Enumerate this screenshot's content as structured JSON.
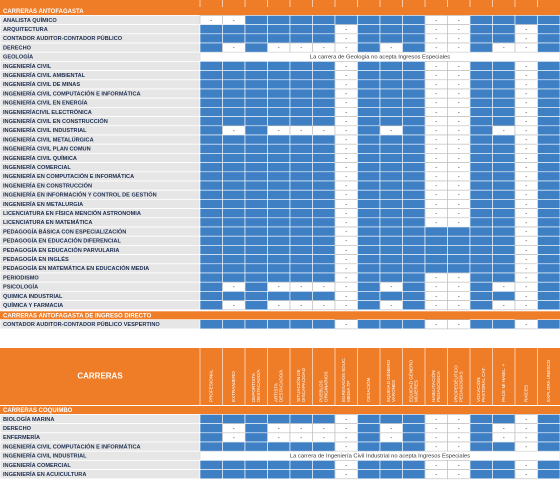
{
  "table": {
    "corner": "CARRERAS",
    "dash": "-",
    "columns": [
      [
        "PROFESIONAL"
      ],
      [
        "EXTRANJERO"
      ],
      [
        "DEPORTISTA",
        "DESTACADO/A"
      ],
      [
        "ARTISTA",
        "DESTACADO/A"
      ],
      [
        "SITUACIÓN DE",
        "DISCAPACIDAD"
      ],
      [
        "PUEBLOS",
        "ORIGINARIOS"
      ],
      [
        "EGRESADOS EDUC.",
        "MEDIA TP"
      ],
      [
        "CESACIÓN"
      ],
      [
        "EQUIDAD GÉNERO",
        "VARONES"
      ],
      [
        "EQUIDAD GÉNERO",
        "MUJERES"
      ],
      [
        "HABILITACIÓN",
        "PEDAGÓGICA"
      ],
      [
        "PROPEDÉUTICO",
        "PEDAGOGÍAS"
      ],
      [
        "VOCACIÓN",
        "PASTORAL CAT."
      ],
      [
        "PACE MI HABIL. +"
      ],
      [
        "RAÍCES"
      ],
      [
        "EXPLORA UNESCO"
      ]
    ],
    "sections": [
      {
        "title": "CARRERAS ANTOFAGASTA",
        "rows": [
          {
            "label": "ANALISTA QUÍMICO",
            "accepts": [
              false,
              false,
              true,
              true,
              true,
              true,
              true,
              true,
              true,
              true,
              false,
              false,
              true,
              true,
              true,
              true
            ]
          },
          {
            "label": "ARQUITECTURA",
            "accepts": [
              true,
              true,
              true,
              true,
              true,
              true,
              false,
              true,
              true,
              true,
              false,
              false,
              true,
              true,
              false,
              true
            ]
          },
          {
            "label": "CONTADOR AUDITOR-CONTADOR PÚBLICO",
            "accepts": [
              true,
              true,
              true,
              true,
              true,
              true,
              false,
              true,
              true,
              true,
              false,
              false,
              true,
              true,
              false,
              true
            ]
          },
          {
            "label": "DERECHO",
            "accepts": [
              true,
              false,
              true,
              false,
              false,
              false,
              false,
              true,
              false,
              true,
              false,
              false,
              true,
              false,
              false,
              true
            ]
          },
          {
            "label": "GEOLOGÍA",
            "note": "La carrera de Geología no acepta Ingresos Especiales"
          },
          {
            "label": "INGENIERÍA CIVIL",
            "accepts": [
              true,
              true,
              true,
              true,
              true,
              true,
              false,
              true,
              true,
              true,
              false,
              false,
              true,
              true,
              false,
              true
            ]
          },
          {
            "label": "INGENIERÍA CIVIL AMBIENTAL",
            "accepts": [
              true,
              true,
              true,
              true,
              true,
              true,
              false,
              true,
              true,
              true,
              false,
              false,
              true,
              true,
              false,
              true
            ]
          },
          {
            "label": "INGENIERÍA CIVIL DE MINAS",
            "accepts": [
              true,
              true,
              true,
              true,
              true,
              true,
              false,
              true,
              true,
              true,
              false,
              false,
              true,
              true,
              false,
              true
            ]
          },
          {
            "label": "INGENIERÍA CIVIL COMPUTACIÓN E INFORMÁTICA",
            "accepts": [
              true,
              true,
              true,
              true,
              true,
              true,
              false,
              true,
              true,
              true,
              false,
              false,
              true,
              true,
              false,
              true
            ]
          },
          {
            "label": "INGENIERÍA CIVIL EN ENERGÍA",
            "accepts": [
              true,
              true,
              true,
              true,
              true,
              true,
              false,
              true,
              true,
              true,
              false,
              false,
              true,
              true,
              false,
              true
            ]
          },
          {
            "label": "INGENIERÍACIVIL ELECTRÓNICA",
            "accepts": [
              true,
              true,
              true,
              true,
              true,
              true,
              false,
              true,
              true,
              true,
              false,
              false,
              true,
              true,
              false,
              true
            ]
          },
          {
            "label": "INGENIERÍA CIVIL EN CONSTRUCCIÓN",
            "accepts": [
              true,
              true,
              true,
              true,
              true,
              true,
              false,
              true,
              true,
              true,
              false,
              false,
              true,
              true,
              false,
              true
            ]
          },
          {
            "label": "INGENIERÍA CIVIL INDUSTRIAL",
            "accepts": [
              true,
              false,
              true,
              false,
              false,
              false,
              false,
              true,
              false,
              true,
              false,
              false,
              true,
              false,
              false,
              true
            ]
          },
          {
            "label": "INGENIERÍA CIVIL METALÚRGICA",
            "accepts": [
              true,
              true,
              true,
              true,
              true,
              true,
              false,
              true,
              true,
              true,
              false,
              false,
              true,
              true,
              false,
              true
            ]
          },
          {
            "label": "INGENIERÍA CIVIL PLAN COMUN",
            "accepts": [
              true,
              true,
              true,
              true,
              true,
              true,
              false,
              true,
              true,
              true,
              false,
              false,
              true,
              true,
              false,
              true
            ]
          },
          {
            "label": "INGENIERÍA CIVIL QUÍMICA",
            "accepts": [
              true,
              true,
              true,
              true,
              true,
              true,
              false,
              true,
              true,
              true,
              false,
              false,
              true,
              true,
              false,
              true
            ]
          },
          {
            "label": "INGENIERÍA COMERCIAL",
            "accepts": [
              true,
              true,
              true,
              true,
              true,
              true,
              false,
              true,
              true,
              true,
              false,
              false,
              true,
              true,
              false,
              true
            ]
          },
          {
            "label": "INGENIERÍA EN COMPUTACIÓN E INFORMÁTICA",
            "accepts": [
              true,
              true,
              true,
              true,
              true,
              true,
              false,
              true,
              true,
              true,
              false,
              false,
              true,
              true,
              false,
              true
            ]
          },
          {
            "label": "INGENIERÍA EN CONSTRUCCIÓN",
            "accepts": [
              true,
              true,
              true,
              true,
              true,
              true,
              false,
              true,
              true,
              true,
              false,
              false,
              true,
              true,
              false,
              true
            ]
          },
          {
            "label": "INGENIERÍA EN INFORMACIÓN Y CONTROL DE GESTIÓN",
            "accepts": [
              true,
              true,
              true,
              true,
              true,
              true,
              false,
              true,
              true,
              true,
              false,
              false,
              true,
              true,
              false,
              true
            ]
          },
          {
            "label": "INGENIERÍA EN METALURGIA",
            "accepts": [
              true,
              true,
              true,
              true,
              true,
              true,
              false,
              true,
              true,
              true,
              false,
              false,
              true,
              true,
              false,
              true
            ]
          },
          {
            "label": "LICENCIATURA EN FÍSICA MENCIÓN ASTRONOMIA",
            "accepts": [
              true,
              true,
              true,
              true,
              true,
              true,
              false,
              true,
              true,
              true,
              false,
              false,
              true,
              true,
              false,
              true
            ]
          },
          {
            "label": "LICENCIATURA EN MATEMÁTICA",
            "accepts": [
              true,
              true,
              true,
              true,
              true,
              true,
              false,
              true,
              true,
              true,
              false,
              false,
              true,
              true,
              false,
              true
            ]
          },
          {
            "label": "PEDAGOGÍA BÁSICA CON ESPECIALIZACIÓN",
            "accepts": [
              true,
              true,
              true,
              true,
              true,
              true,
              false,
              true,
              true,
              true,
              true,
              true,
              true,
              true,
              false,
              true
            ]
          },
          {
            "label": "PEDAGOGÍA EN EDUCACIÓN DIFERENCIAL",
            "accepts": [
              true,
              true,
              true,
              true,
              true,
              true,
              false,
              true,
              true,
              true,
              true,
              true,
              true,
              true,
              false,
              true
            ]
          },
          {
            "label": "PEDAGOGÍA EN EDUCACIÓN PARVULARIA",
            "accepts": [
              true,
              true,
              true,
              true,
              true,
              true,
              false,
              true,
              true,
              true,
              true,
              true,
              true,
              true,
              false,
              true
            ]
          },
          {
            "label": "PEDAGOGÍA EN INGLÉS",
            "accepts": [
              true,
              true,
              true,
              true,
              true,
              true,
              false,
              true,
              true,
              true,
              true,
              true,
              true,
              true,
              false,
              true
            ]
          },
          {
            "label": "PEDAGOGÍA EN MATEMÁTICA EN EDUCACIÓN MEDIA",
            "accepts": [
              true,
              true,
              true,
              true,
              true,
              true,
              false,
              true,
              true,
              true,
              true,
              true,
              true,
              true,
              false,
              true
            ]
          },
          {
            "label": "PERIODISMO",
            "accepts": [
              true,
              true,
              true,
              true,
              true,
              true,
              false,
              true,
              true,
              true,
              false,
              false,
              true,
              true,
              false,
              true
            ]
          },
          {
            "label": "PSICOLOGÍA",
            "accepts": [
              true,
              false,
              true,
              false,
              false,
              false,
              false,
              true,
              false,
              true,
              false,
              false,
              true,
              false,
              false,
              true
            ]
          },
          {
            "label": "QUIMICA INDUSTRIAL",
            "accepts": [
              true,
              true,
              true,
              true,
              true,
              true,
              false,
              true,
              true,
              true,
              false,
              false,
              true,
              true,
              false,
              true
            ]
          },
          {
            "label": "QUÍMICA Y FARMACIA",
            "accepts": [
              true,
              false,
              true,
              false,
              false,
              false,
              false,
              true,
              false,
              true,
              false,
              false,
              true,
              false,
              false,
              true
            ]
          }
        ]
      },
      {
        "title": "CARRERAS ANTOFAGASTA DE INGRESO DIRECTO",
        "rows": [
          {
            "label": "CONTADOR AUDITOR-CONTADOR PÚBLICO  VESPERTINO",
            "accepts": [
              true,
              true,
              true,
              true,
              true,
              true,
              false,
              true,
              true,
              true,
              false,
              false,
              true,
              true,
              false,
              true
            ]
          }
        ]
      },
      {
        "title": "CARRERAS COQUIMBO",
        "rows": [
          {
            "label": "BIOLOGÍA MARINA",
            "accepts": [
              true,
              true,
              true,
              true,
              true,
              true,
              false,
              true,
              true,
              true,
              false,
              false,
              true,
              true,
              false,
              true
            ]
          },
          {
            "label": "DERECHO",
            "accepts": [
              true,
              false,
              true,
              false,
              false,
              false,
              false,
              true,
              false,
              true,
              false,
              false,
              true,
              false,
              false,
              true
            ]
          },
          {
            "label": "ENFERMERÍA",
            "accepts": [
              true,
              false,
              true,
              false,
              false,
              false,
              false,
              true,
              false,
              true,
              false,
              false,
              true,
              false,
              false,
              true
            ]
          },
          {
            "label": "INGENIERÍA CIVIL COMPUTACIÓN E INFORMÁTICA",
            "accepts": [
              true,
              true,
              true,
              true,
              true,
              true,
              false,
              true,
              true,
              true,
              false,
              false,
              true,
              true,
              false,
              true
            ]
          },
          {
            "label": "INGENIERÍA CIVIL INDUSTRIAL",
            "note": "La carrera de Ingeniería Civil Industrial no acepta Ingresos Especiales"
          },
          {
            "label": "INGENIERÍA COMERCIAL",
            "accepts": [
              true,
              true,
              true,
              true,
              true,
              true,
              false,
              true,
              true,
              true,
              false,
              false,
              true,
              true,
              false,
              true
            ]
          },
          {
            "label": "INGENIERÍA EN ACUICULTURA",
            "accepts": [
              true,
              true,
              true,
              true,
              true,
              true,
              false,
              true,
              true,
              true,
              false,
              false,
              true,
              true,
              false,
              true
            ]
          }
        ]
      }
    ]
  }
}
